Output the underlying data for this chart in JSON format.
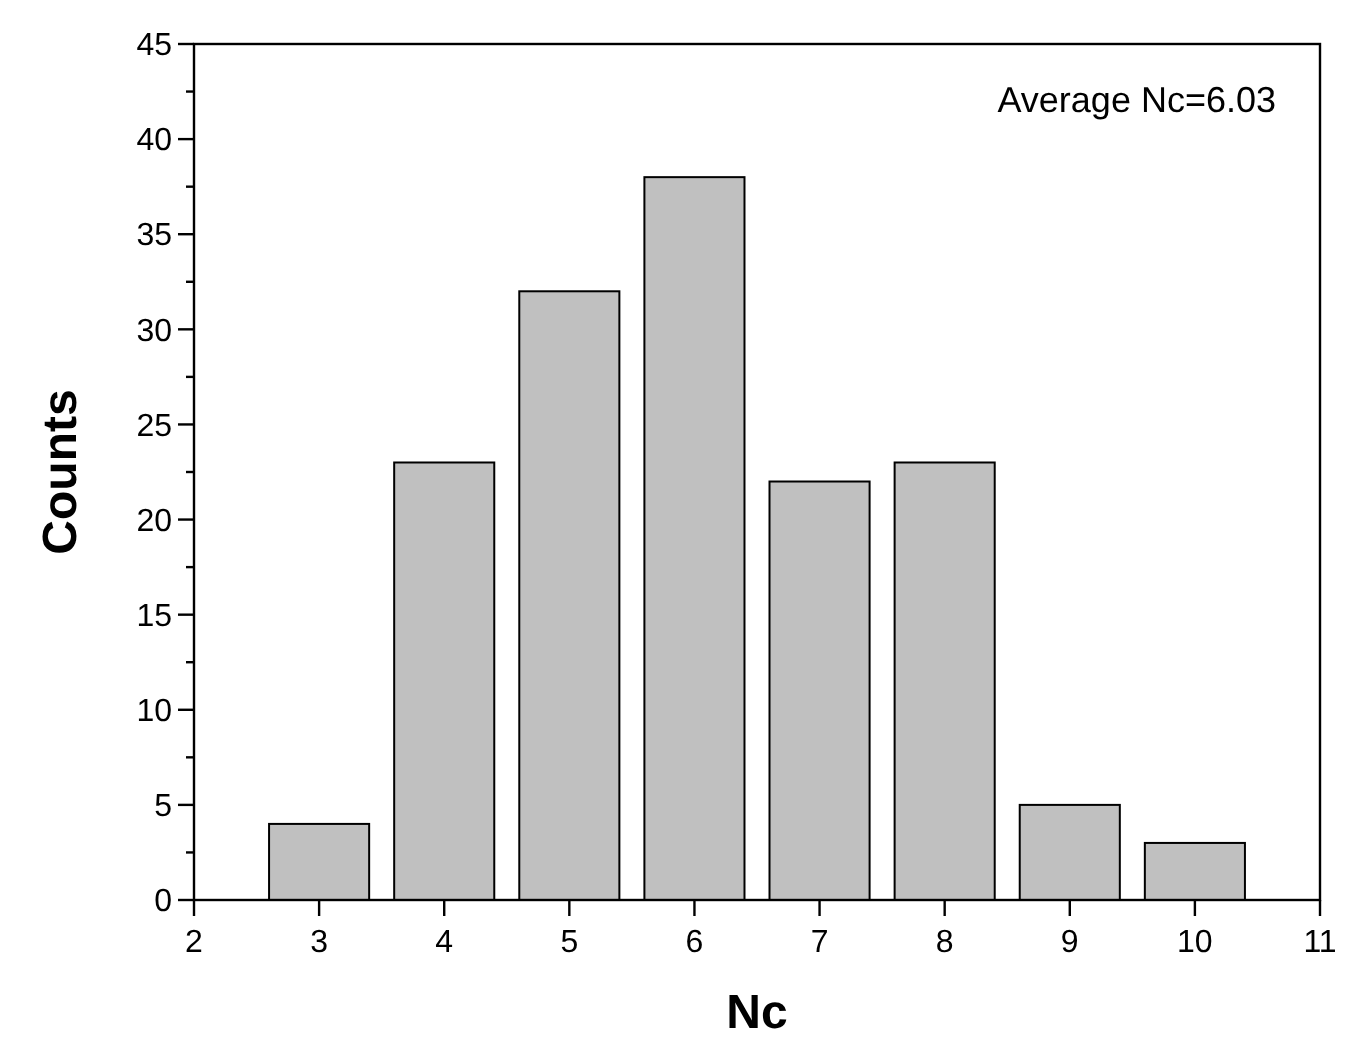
{
  "chart_data": {
    "type": "bar",
    "xlabel": "Nc",
    "ylabel": "Counts",
    "x": [
      3,
      4,
      5,
      6,
      7,
      8,
      9,
      10
    ],
    "values": [
      4,
      23,
      32,
      38,
      22,
      23,
      5,
      3
    ],
    "color": "#c0c0c0",
    "xlim": [
      2,
      11
    ],
    "xticks": [
      2,
      3,
      4,
      5,
      6,
      7,
      8,
      9,
      10,
      11
    ],
    "ylim": [
      0,
      45
    ],
    "yticks": [
      0,
      {
        "value": 2.5,
        "label": null
      },
      5,
      {
        "value": 7.5,
        "label": null
      },
      10,
      {
        "value": 12.5,
        "label": null
      },
      15,
      {
        "value": 17.5,
        "label": null
      },
      20,
      {
        "value": 22.5,
        "label": null
      },
      25,
      {
        "value": 27.5,
        "label": null
      },
      30,
      {
        "value": 32.5,
        "label": null
      },
      35,
      {
        "value": 37.5,
        "label": null
      },
      40,
      {
        "value": 42.5,
        "label": null
      },
      45
    ],
    "grid": false,
    "annotations": [
      "Average Nc=6.03"
    ]
  }
}
